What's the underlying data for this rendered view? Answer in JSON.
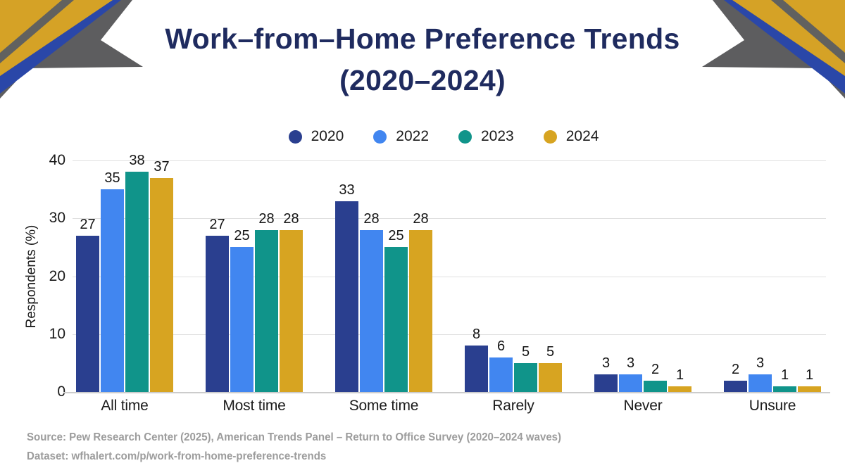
{
  "title": {
    "line1": "Work–from–Home Preference Trends",
    "line2": "(2020–2024)"
  },
  "chart_data": {
    "type": "bar",
    "title": "Work–from–Home Preference Trends (2020–2024)",
    "categories": [
      "All time",
      "Most time",
      "Some time",
      "Rarely",
      "Never",
      "Unsure"
    ],
    "series": [
      {
        "name": "2020",
        "color": "#2A3F8F",
        "values": [
          27,
          27,
          33,
          8,
          3,
          2
        ]
      },
      {
        "name": "2022",
        "color": "#4186F0",
        "values": [
          35,
          25,
          28,
          6,
          3,
          3
        ]
      },
      {
        "name": "2023",
        "color": "#10948A",
        "values": [
          38,
          28,
          25,
          5,
          2,
          1
        ]
      },
      {
        "name": "2024",
        "color": "#D7A421",
        "values": [
          37,
          28,
          28,
          5,
          1,
          1
        ]
      }
    ],
    "xlabel": "",
    "ylabel": "Respondents (%)",
    "ylim": [
      0,
      40
    ],
    "yticks": [
      0,
      10,
      20,
      30,
      40
    ],
    "grid": true,
    "legend_position": "top",
    "value_labels": true
  },
  "footer": {
    "source": "Source: Pew Research Center (2025), American Trends Panel – Return to Office Survey (2020–2024 waves)",
    "dataset": "Dataset: wfhalert.com/p/work-from-home-preference-trends"
  },
  "colors": {
    "title": "#1F2B5F",
    "decor_gold": "#D5A226",
    "decor_blue": "#2A47A8",
    "decor_gray": "#5D5D5F",
    "decor_stripe": "#61615f",
    "gridline": "#E0E0E0",
    "baseline": "#CCCCCC",
    "footer_text": "#9C9C9C"
  }
}
